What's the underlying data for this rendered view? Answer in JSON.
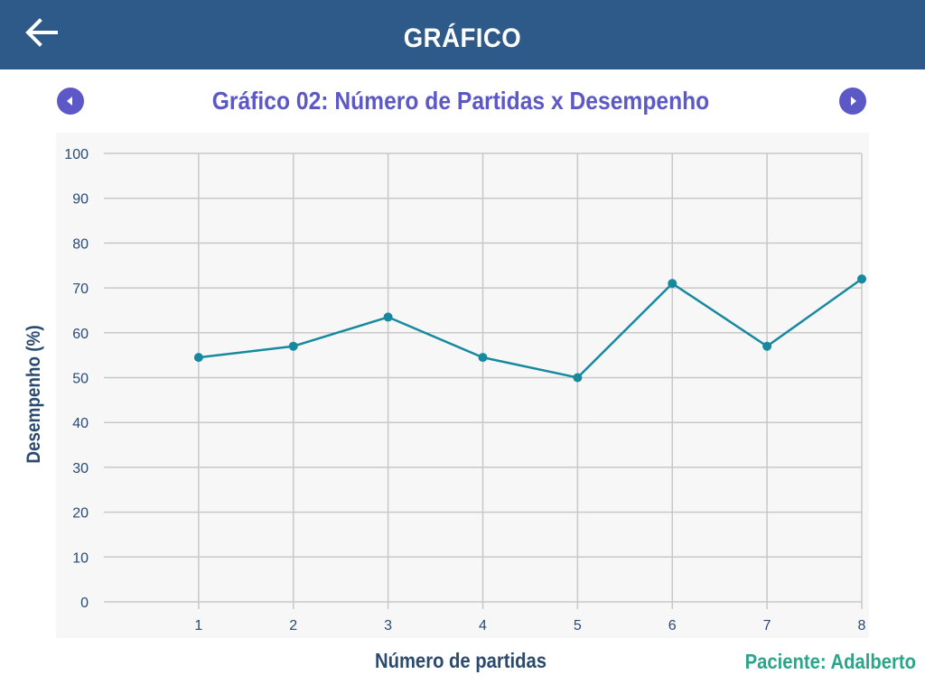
{
  "header": {
    "title": "GRÁFICO",
    "back_icon": "arrow-left-icon"
  },
  "navigation": {
    "prev_icon": "caret-left-icon",
    "next_icon": "caret-right-icon",
    "accent_color": "#5d58c7"
  },
  "patient": {
    "label": "Paciente: Adalberto"
  },
  "colors": {
    "header_bg": "#2e5a8a",
    "line": "#17899f",
    "patient_text": "#2aa58c"
  },
  "chart_data": {
    "type": "line",
    "title": "Gráfico 02: Número de Partidas x Desempenho",
    "xlabel": "Número de partidas",
    "ylabel": "Desempenho (%)",
    "x": [
      1,
      2,
      3,
      4,
      5,
      6,
      7,
      8
    ],
    "series": [
      {
        "values": [
          54.5,
          57,
          63.5,
          54.5,
          50,
          71,
          57,
          72
        ]
      }
    ],
    "xlim": [
      0,
      8
    ],
    "ylim": [
      0,
      100
    ],
    "yticks": [
      0,
      10,
      20,
      30,
      40,
      50,
      60,
      70,
      80,
      90,
      100
    ],
    "xticks": [
      1,
      2,
      3,
      4,
      5,
      6,
      7,
      8
    ],
    "grid": true,
    "legend": "none"
  }
}
